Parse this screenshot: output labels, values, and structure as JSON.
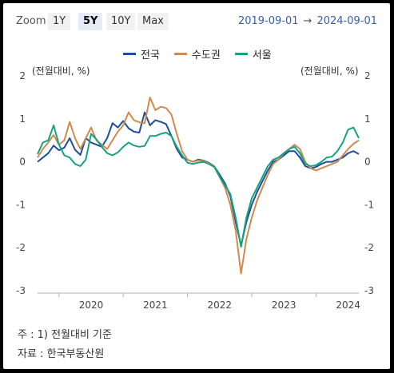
{
  "toolbar": {
    "zoom_label": "Zoom",
    "ranges": [
      "1Y",
      "5Y",
      "10Y",
      "Max"
    ],
    "active_range": "5Y",
    "date_from": "2019-09-01",
    "date_arrow": "→",
    "date_to": "2024-09-01"
  },
  "colors": {
    "nationwide": "#1f4e9a",
    "capital_area": "#d08a4e",
    "seoul": "#14a37f"
  },
  "chart_data": {
    "type": "line",
    "title": "",
    "ylabel_left": "(전월대비, %)",
    "ylabel_right": "(전월대비, %)",
    "ylim": [
      -3,
      2
    ],
    "y_ticks": [
      2,
      1,
      0,
      -1,
      -2,
      -3
    ],
    "x_ticks": [
      "2020",
      "2021",
      "2022",
      "2023",
      "2024"
    ],
    "grid": "none",
    "legend_position": "top-center",
    "x": [
      "2019-09",
      "2019-10",
      "2019-11",
      "2019-12",
      "2020-01",
      "2020-02",
      "2020-03",
      "2020-04",
      "2020-05",
      "2020-06",
      "2020-07",
      "2020-08",
      "2020-09",
      "2020-10",
      "2020-11",
      "2020-12",
      "2021-01",
      "2021-02",
      "2021-03",
      "2021-04",
      "2021-05",
      "2021-06",
      "2021-07",
      "2021-08",
      "2021-09",
      "2021-10",
      "2021-11",
      "2021-12",
      "2022-01",
      "2022-02",
      "2022-03",
      "2022-04",
      "2022-05",
      "2022-06",
      "2022-07",
      "2022-08",
      "2022-09",
      "2022-10",
      "2022-11",
      "2022-12",
      "2023-01",
      "2023-02",
      "2023-03",
      "2023-04",
      "2023-05",
      "2023-06",
      "2023-07",
      "2023-08",
      "2023-09",
      "2023-10",
      "2023-11",
      "2023-12",
      "2024-01",
      "2024-02",
      "2024-03",
      "2024-04",
      "2024-05",
      "2024-06",
      "2024-07",
      "2024-08",
      "2024-09"
    ],
    "series": [
      {
        "name": "전국",
        "color_key": "nationwide",
        "values": [
          0.0,
          0.1,
          0.2,
          0.38,
          0.27,
          0.33,
          0.55,
          0.28,
          0.16,
          0.55,
          0.45,
          0.4,
          0.35,
          0.55,
          0.9,
          0.8,
          0.95,
          0.78,
          0.7,
          0.68,
          1.15,
          0.85,
          0.97,
          0.93,
          0.88,
          0.6,
          0.3,
          0.1,
          0.05,
          0.0,
          0.05,
          0.03,
          -0.02,
          -0.1,
          -0.3,
          -0.5,
          -0.8,
          -1.4,
          -1.95,
          -1.4,
          -1.0,
          -0.7,
          -0.45,
          -0.2,
          0.0,
          0.05,
          0.15,
          0.25,
          0.25,
          0.1,
          -0.1,
          -0.15,
          -0.12,
          -0.05,
          0.0,
          0.0,
          0.05,
          0.1,
          0.2,
          0.25,
          0.18
        ]
      },
      {
        "name": "수도권",
        "color_key": "capital_area",
        "values": [
          0.1,
          0.3,
          0.45,
          0.62,
          0.4,
          0.5,
          0.93,
          0.55,
          0.3,
          0.55,
          0.8,
          0.5,
          0.4,
          0.3,
          0.5,
          0.7,
          0.85,
          1.15,
          0.97,
          0.92,
          0.9,
          1.5,
          1.2,
          1.28,
          1.25,
          1.1,
          0.65,
          0.25,
          0.05,
          0.0,
          0.03,
          0.02,
          -0.03,
          -0.1,
          -0.35,
          -0.6,
          -1.0,
          -1.6,
          -2.6,
          -1.8,
          -1.3,
          -0.9,
          -0.6,
          -0.3,
          -0.05,
          0.05,
          0.2,
          0.3,
          0.4,
          0.3,
          0.0,
          -0.15,
          -0.2,
          -0.15,
          -0.1,
          -0.05,
          0.0,
          0.15,
          0.3,
          0.42,
          0.5
        ]
      },
      {
        "name": "서울",
        "color_key": "seoul",
        "values": [
          0.18,
          0.45,
          0.5,
          0.85,
          0.4,
          0.15,
          0.1,
          -0.05,
          -0.1,
          0.05,
          0.65,
          0.52,
          0.35,
          0.2,
          0.15,
          0.22,
          0.35,
          0.45,
          0.38,
          0.35,
          0.37,
          0.6,
          0.6,
          0.65,
          0.68,
          0.6,
          0.35,
          0.15,
          -0.02,
          -0.05,
          -0.02,
          0.0,
          -0.05,
          -0.12,
          -0.35,
          -0.55,
          -0.75,
          -1.3,
          -1.98,
          -1.3,
          -0.85,
          -0.6,
          -0.35,
          -0.1,
          0.05,
          0.1,
          0.2,
          0.3,
          0.35,
          0.2,
          -0.05,
          -0.1,
          -0.08,
          0.0,
          0.1,
          0.12,
          0.25,
          0.45,
          0.75,
          0.8,
          0.55
        ]
      }
    ]
  },
  "footnotes": {
    "note": "주 : 1) 전월대비 기준",
    "source": "자료 :  한국부동산원"
  }
}
